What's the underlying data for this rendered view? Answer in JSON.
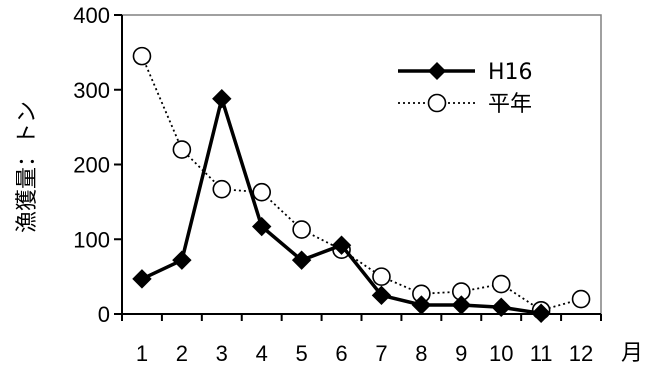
{
  "chart_data": {
    "type": "line",
    "x_unit_label": "月",
    "ylabel": "漁獲量：トン",
    "ylim": [
      0,
      400
    ],
    "y_ticks": [
      0,
      100,
      200,
      300,
      400
    ],
    "categories": [
      "1",
      "2",
      "3",
      "4",
      "5",
      "6",
      "7",
      "8",
      "9",
      "10",
      "11",
      "12"
    ],
    "grid": false,
    "legend_position": "top-right",
    "series": [
      {
        "name": "H16",
        "values": [
          47,
          72,
          288,
          117,
          72,
          92,
          25,
          12,
          12,
          9,
          1,
          null
        ],
        "line_style": "solid",
        "marker": "diamond-filled",
        "color": "#000000"
      },
      {
        "name": "平年",
        "values": [
          345,
          220,
          167,
          163,
          113,
          86,
          50,
          27,
          30,
          40,
          5,
          20
        ],
        "line_style": "dotted",
        "marker": "circle-open",
        "color": "#000000"
      }
    ]
  }
}
